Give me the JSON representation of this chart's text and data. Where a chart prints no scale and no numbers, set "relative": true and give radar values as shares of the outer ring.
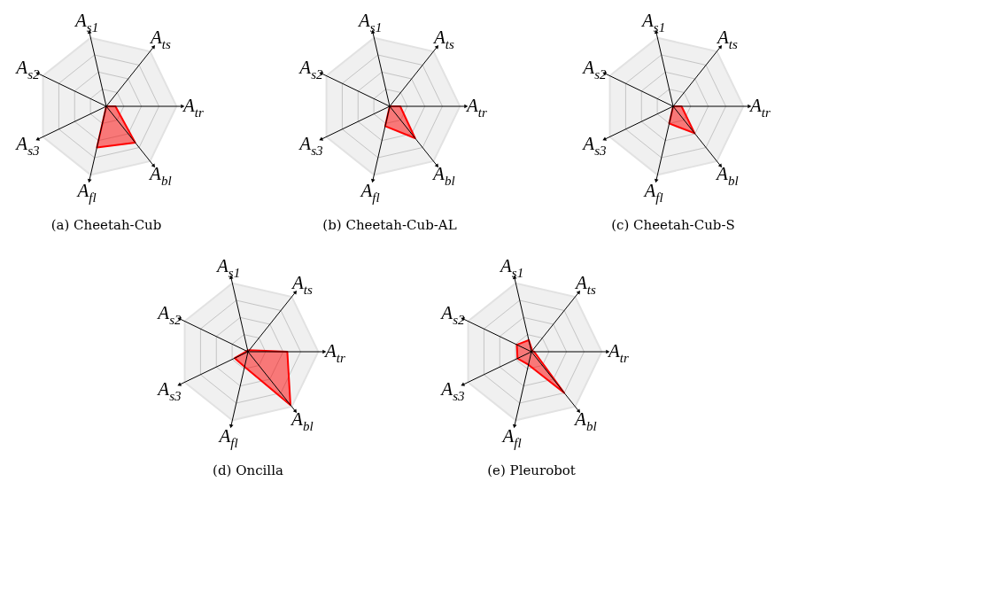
{
  "chart_data": [
    {
      "type": "radar",
      "title": "(a) Cheetah-Cub",
      "categories": [
        "A$_{s1}$",
        "A$_{ts}$",
        "A$_{tr}$",
        "A$_{bl}$",
        "A$_{fl}$",
        "A$_{s3}$",
        "A$_{s2}$"
      ],
      "relative": true,
      "grid": true,
      "series": [
        {
          "color": "#ff0000",
          "values": [
            0,
            0,
            0.13,
            0.66,
            0.6,
            0,
            0
          ]
        }
      ]
    },
    {
      "type": "radar",
      "title": "(b) Cheetah-Cub-AL",
      "categories": [
        "A$_{s1}$",
        "A$_{ts}$",
        "A$_{tr}$",
        "A$_{bl}$",
        "A$_{fl}$",
        "A$_{s3}$",
        "A$_{s2}$"
      ],
      "relative": true,
      "grid": true,
      "series": [
        {
          "color": "#ff0000",
          "values": [
            0,
            0,
            0.15,
            0.58,
            0.29,
            0,
            0
          ]
        }
      ]
    },
    {
      "type": "radar",
      "title": "(c) Cheetah-Cub-S",
      "categories": [
        "A$_{s1}$",
        "A$_{ts}$",
        "A$_{tr}$",
        "A$_{bl}$",
        "A$_{fl}$",
        "A$_{s3}$",
        "A$_{s2}$"
      ],
      "relative": true,
      "grid": true,
      "series": [
        {
          "color": "#ff0000",
          "values": [
            0,
            0,
            0.12,
            0.49,
            0.25,
            0,
            0
          ]
        }
      ]
    },
    {
      "type": "radar",
      "title": "(d) Oncilla",
      "categories": [
        "A$_{s1}$",
        "A$_{ts}$",
        "A$_{tr}$",
        "A$_{bl}$",
        "A$_{fl}$",
        "A$_{s3}$",
        "A$_{s2}$"
      ],
      "relative": true,
      "grid": true,
      "series": [
        {
          "color": "#ff0000",
          "values": [
            0.02,
            0.03,
            0.56,
            0.97,
            0.22,
            0.21,
            0.02
          ]
        }
      ]
    },
    {
      "type": "radar",
      "title": "(e) Pleurobot",
      "categories": [
        "A$_{s1}$",
        "A$_{ts}$",
        "A$_{tr}$",
        "A$_{bl}$",
        "A$_{fl}$",
        "A$_{s3}$",
        "A$_{s2}$"
      ],
      "relative": true,
      "grid": true,
      "series": [
        {
          "color": "#ff0000",
          "values": [
            0.17,
            0.02,
            0.04,
            0.75,
            0.19,
            0.22,
            0.23
          ]
        }
      ]
    }
  ]
}
